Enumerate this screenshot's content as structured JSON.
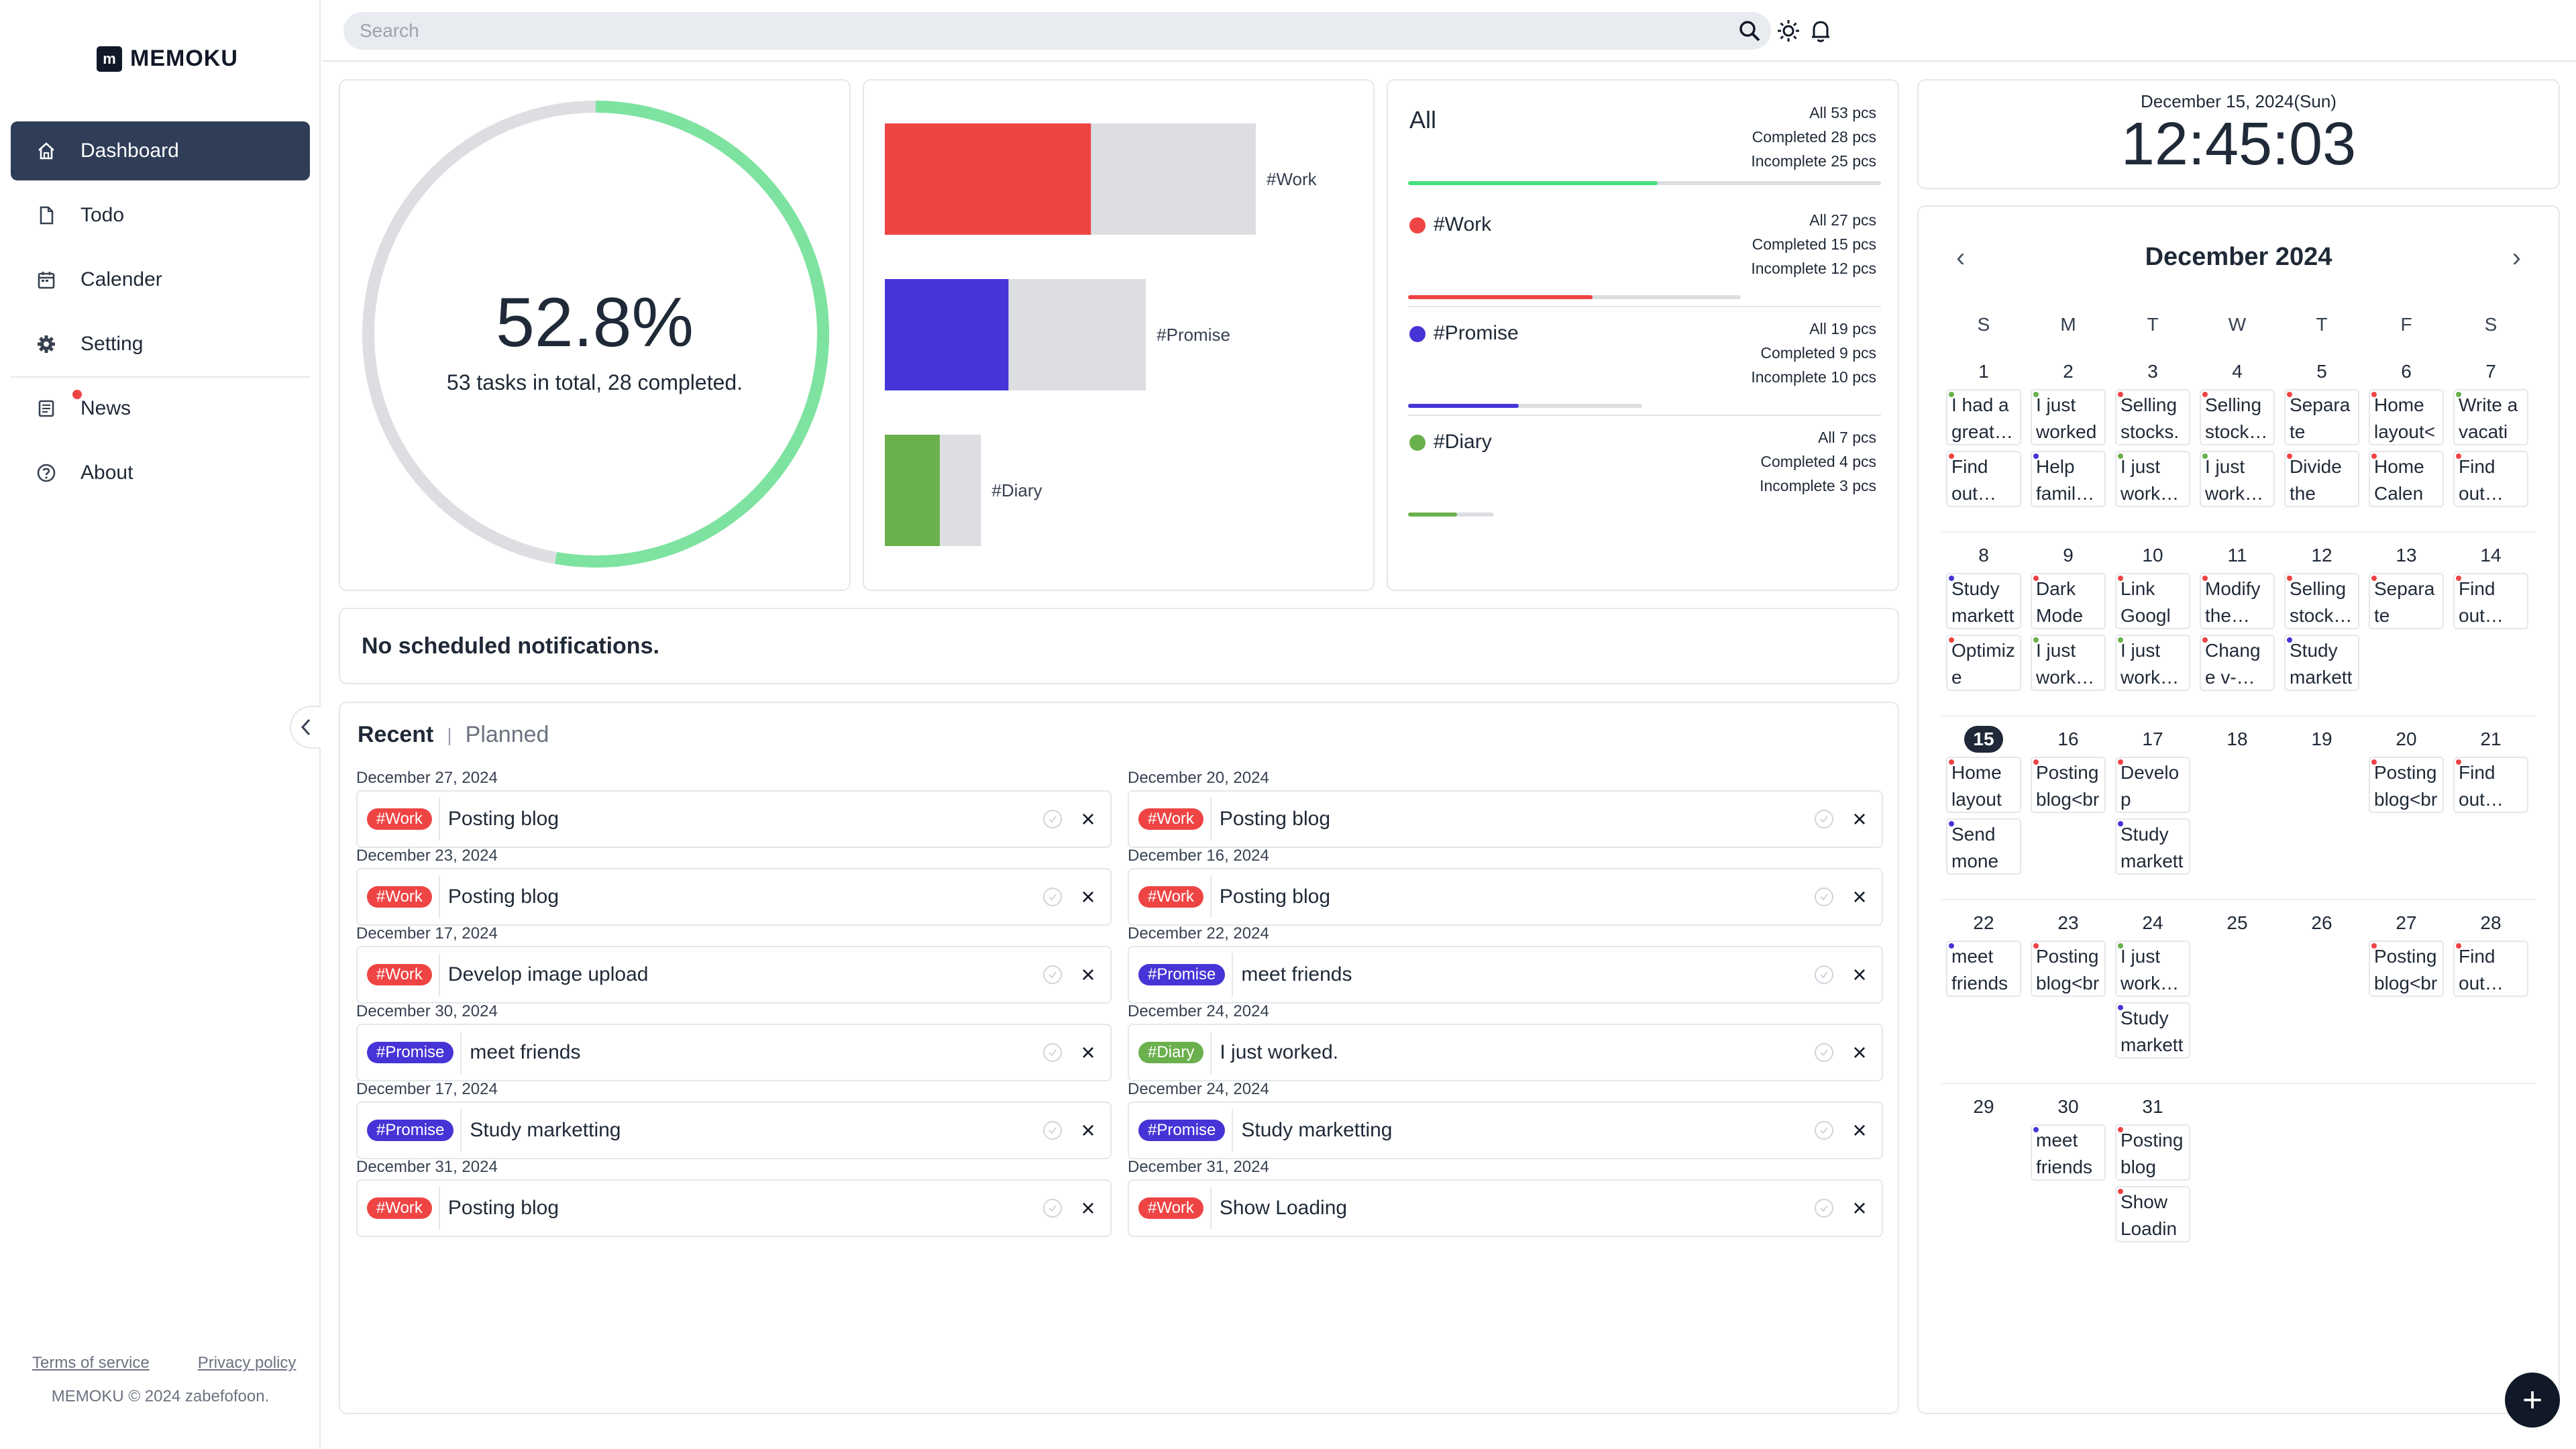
{
  "app": {
    "logo_letter": "m",
    "name": "MEMOKU"
  },
  "sidebar": {
    "items": [
      {
        "label": "Dashboard",
        "icon": "home-icon",
        "active": true
      },
      {
        "label": "Todo",
        "icon": "document-icon"
      },
      {
        "label": "Calender",
        "icon": "calendar-icon"
      },
      {
        "label": "Setting",
        "icon": "gear-icon"
      },
      {
        "label": "News",
        "icon": "news-icon"
      },
      {
        "label": "About",
        "icon": "question-icon"
      }
    ],
    "terms": "Terms of service",
    "privacy": "Privacy policy",
    "copyright": "MEMOKU © 2024 zabefofoon."
  },
  "search": {
    "placeholder": "Search"
  },
  "summary": {
    "percent": "52.8%",
    "percent_value": 52.8,
    "subtitle": "53 tasks in total, 28 completed."
  },
  "chart_data": {
    "type": "bar",
    "categories": [
      "#Work",
      "#Promise",
      "#Diary"
    ],
    "series": [
      {
        "values": [
          15,
          9,
          4
        ]
      },
      {
        "values": [
          27,
          19,
          7
        ]
      }
    ]
  },
  "stats": {
    "all": {
      "title": "All",
      "all": "All 53 pcs",
      "completed": "Completed 28 pcs",
      "incomplete": "Incomplete 25 pcs",
      "done": 28,
      "total": 53
    },
    "tags": [
      {
        "name": "#Work",
        "color": "#ef4444",
        "all": "All 27 pcs",
        "completed": "Completed 15 pcs",
        "incomplete": "Incomplete 12 pcs",
        "done": 15,
        "total": 27
      },
      {
        "name": "#Promise",
        "color": "#4634d6",
        "all": "All 19 pcs",
        "completed": "Completed 9 pcs",
        "incomplete": "Incomplete 10 pcs",
        "done": 9,
        "total": 19
      },
      {
        "name": "#Diary",
        "color": "#6ab04c",
        "all": "All 7 pcs",
        "completed": "Completed 4 pcs",
        "incomplete": "Incomplete 3 pcs",
        "done": 4,
        "total": 7
      }
    ]
  },
  "notifications": {
    "empty": "No scheduled notifications."
  },
  "recent": {
    "tab_recent": "Recent",
    "tab_sep": "|",
    "tab_planned": "Planned",
    "left": [
      {
        "date": "December 27, 2024",
        "tag": "#Work",
        "text": "Posting blog"
      },
      {
        "date": "December 23, 2024",
        "tag": "#Work",
        "text": "Posting blog"
      },
      {
        "date": "December 17, 2024",
        "tag": "#Work",
        "text": "Develop image upload"
      },
      {
        "date": "December 30, 2024",
        "tag": "#Promise",
        "text": "meet friends"
      },
      {
        "date": "December 17, 2024",
        "tag": "#Promise",
        "text": "Study marketting"
      },
      {
        "date": "December 31, 2024",
        "tag": "#Work",
        "text": "Posting blog"
      }
    ],
    "right": [
      {
        "date": "December 20, 2024",
        "tag": "#Work",
        "text": "Posting blog"
      },
      {
        "date": "December 16, 2024",
        "tag": "#Work",
        "text": "Posting blog"
      },
      {
        "date": "December 22, 2024",
        "tag": "#Promise",
        "text": "meet friends"
      },
      {
        "date": "December 24, 2024",
        "tag": "#Diary",
        "text": "I just worked."
      },
      {
        "date": "December 24, 2024",
        "tag": "#Promise",
        "text": "Study marketting"
      },
      {
        "date": "December 31, 2024",
        "tag": "#Work",
        "text": "Show Loading"
      }
    ],
    "delete_symbol": "×"
  },
  "clock": {
    "date": "December 15, 2024(Sun)",
    "time": "12:45:03"
  },
  "calendar": {
    "title": "December 2024",
    "prev": "‹",
    "next": "›",
    "weekdays": [
      "S",
      "M",
      "T",
      "W",
      "T",
      "F",
      "S"
    ],
    "today": 15,
    "weeks": [
      [
        {
          "day": "1",
          "events": [
            {
              "text": "I had a great…",
              "tag": "#Diary"
            },
            {
              "text": "Find out…",
              "tag": "#Work"
            }
          ]
        },
        {
          "day": "2",
          "events": [
            {
              "text": "I just worked.",
              "tag": "#Diary"
            },
            {
              "text": "Help famil…",
              "tag": "#Promise"
            }
          ]
        },
        {
          "day": "3",
          "events": [
            {
              "text": "Selling stocks.",
              "tag": "#Work"
            },
            {
              "text": "I just work…",
              "tag": "#Diary"
            }
          ]
        },
        {
          "day": "4",
          "events": [
            {
              "text": "Selling stock…",
              "tag": "#Work"
            },
            {
              "text": "I just work…",
              "tag": "#Diary"
            }
          ]
        },
        {
          "day": "5",
          "events": [
            {
              "text": "Separate the…",
              "tag": "#Work"
            },
            {
              "text": "Divide the ta…",
              "tag": "#Work"
            }
          ]
        },
        {
          "day": "6",
          "events": [
            {
              "text": "Home layout<b",
              "tag": "#Work"
            },
            {
              "text": "Home Calen…",
              "tag": "#Work"
            }
          ]
        },
        {
          "day": "7",
          "events": [
            {
              "text": "Write a vacati…",
              "tag": "#Diary"
            },
            {
              "text": "Find out…",
              "tag": "#Work"
            }
          ]
        }
      ],
      [
        {
          "day": "8",
          "events": [
            {
              "text": "Study marketti",
              "tag": "#Promise"
            },
            {
              "text": "Optimize Memoku",
              "tag": "#Work"
            }
          ]
        },
        {
          "day": "9",
          "events": [
            {
              "text": "Dark Mode…",
              "tag": "#Work"
            },
            {
              "text": "I just work…",
              "tag": "#Diary"
            }
          ]
        },
        {
          "day": "10",
          "events": [
            {
              "text": "Link Googl…",
              "tag": "#Work"
            },
            {
              "text": "I just work…",
              "tag": "#Diary"
            }
          ]
        },
        {
          "day": "11",
          "events": [
            {
              "text": "Modify the…",
              "tag": "#Work"
            },
            {
              "text": "Change v-…",
              "tag": "#Work"
            }
          ]
        },
        {
          "day": "12",
          "events": [
            {
              "text": "Selling stock…",
              "tag": "#Work"
            },
            {
              "text": "Study marketti",
              "tag": "#Promise"
            }
          ]
        },
        {
          "day": "13",
          "events": [
            {
              "text": "Separate the…",
              "tag": "#Work"
            }
          ]
        },
        {
          "day": "14",
          "events": [
            {
              "text": "Find out…",
              "tag": "#Work"
            }
          ]
        }
      ],
      [
        {
          "day": "15",
          "events": [
            {
              "text": "Home layout",
              "tag": "#Work"
            },
            {
              "text": "Send mone…",
              "tag": "#Promise"
            }
          ]
        },
        {
          "day": "16",
          "events": [
            {
              "text": "Posting blog<br/",
              "tag": "#Work"
            }
          ]
        },
        {
          "day": "17",
          "events": [
            {
              "text": "Develop imag…",
              "tag": "#Work"
            },
            {
              "text": "Study marketti",
              "tag": "#Promise"
            }
          ]
        },
        {
          "day": "18",
          "events": []
        },
        {
          "day": "19",
          "events": []
        },
        {
          "day": "20",
          "events": [
            {
              "text": "Posting blog<br/",
              "tag": "#Work"
            }
          ]
        },
        {
          "day": "21",
          "events": [
            {
              "text": "Find out…",
              "tag": "#Work"
            }
          ]
        }
      ],
      [
        {
          "day": "22",
          "events": [
            {
              "text": "meet friends<",
              "tag": "#Promise"
            }
          ]
        },
        {
          "day": "23",
          "events": [
            {
              "text": "Posting blog<br/",
              "tag": "#Work"
            }
          ]
        },
        {
          "day": "24",
          "events": [
            {
              "text": "I just work…",
              "tag": "#Diary"
            },
            {
              "text": "Study marketti",
              "tag": "#Promise"
            }
          ]
        },
        {
          "day": "25",
          "events": []
        },
        {
          "day": "26",
          "events": []
        },
        {
          "day": "27",
          "events": [
            {
              "text": "Posting blog<br/",
              "tag": "#Work"
            }
          ]
        },
        {
          "day": "28",
          "events": [
            {
              "text": "Find out…",
              "tag": "#Work"
            }
          ]
        }
      ],
      [
        {
          "day": "29",
          "events": []
        },
        {
          "day": "30",
          "events": [
            {
              "text": "meet friends",
              "tag": "#Promise"
            }
          ]
        },
        {
          "day": "31",
          "events": [
            {
              "text": "Posting blog",
              "tag": "#Work"
            },
            {
              "text": "Show Loading",
              "tag": "#Work"
            }
          ]
        }
      ]
    ]
  },
  "colors": {
    "work": "#ef4444",
    "promise": "#4634d6",
    "diary": "#6ab04c",
    "progress": "#7ee3a0",
    "track": "#dcdee2",
    "all_bar": "#4ade80"
  },
  "fab": {
    "label": "+"
  }
}
